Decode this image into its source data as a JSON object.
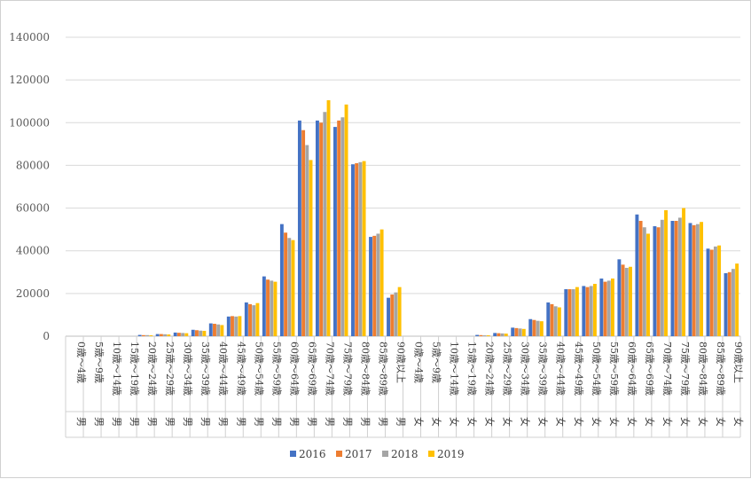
{
  "chart_data": {
    "type": "bar",
    "title": "",
    "xlabel": "",
    "ylabel": "",
    "ylim": [
      0,
      140000
    ],
    "yticks": [
      "0",
      "20000",
      "40000",
      "60000",
      "80000",
      "100000",
      "120000",
      "140000"
    ],
    "grid": true,
    "legend_position": "bottom",
    "categories": [
      {
        "age": "0歳～4歳",
        "sex": "男"
      },
      {
        "age": "5歳～9歳",
        "sex": "男"
      },
      {
        "age": "10歳～14歳",
        "sex": "男"
      },
      {
        "age": "15歳～19歳",
        "sex": "男"
      },
      {
        "age": "20歳～24歳",
        "sex": "男"
      },
      {
        "age": "25歳～29歳",
        "sex": "男"
      },
      {
        "age": "30歳～34歳",
        "sex": "男"
      },
      {
        "age": "35歳～39歳",
        "sex": "男"
      },
      {
        "age": "40歳～44歳",
        "sex": "男"
      },
      {
        "age": "45歳～49歳",
        "sex": "男"
      },
      {
        "age": "50歳～54歳",
        "sex": "男"
      },
      {
        "age": "55歳～59歳",
        "sex": "男"
      },
      {
        "age": "60歳～64歳",
        "sex": "男"
      },
      {
        "age": "65歳～69歳",
        "sex": "男"
      },
      {
        "age": "70歳～74歳",
        "sex": "男"
      },
      {
        "age": "75歳～79歳",
        "sex": "男"
      },
      {
        "age": "80歳～84歳",
        "sex": "男"
      },
      {
        "age": "85歳～89歳",
        "sex": "男"
      },
      {
        "age": "90歳以上",
        "sex": "男"
      },
      {
        "age": "0歳～4歳",
        "sex": "女"
      },
      {
        "age": "5歳～9歳",
        "sex": "女"
      },
      {
        "age": "10歳～14歳",
        "sex": "女"
      },
      {
        "age": "15歳～19歳",
        "sex": "女"
      },
      {
        "age": "20歳～24歳",
        "sex": "女"
      },
      {
        "age": "25歳～29歳",
        "sex": "女"
      },
      {
        "age": "30歳～34歳",
        "sex": "女"
      },
      {
        "age": "35歳～39歳",
        "sex": "女"
      },
      {
        "age": "40歳～44歳",
        "sex": "女"
      },
      {
        "age": "45歳～49歳",
        "sex": "女"
      },
      {
        "age": "50歳～54歳",
        "sex": "女"
      },
      {
        "age": "55歳～59歳",
        "sex": "女"
      },
      {
        "age": "60歳～64歳",
        "sex": "女"
      },
      {
        "age": "65歳～69歳",
        "sex": "女"
      },
      {
        "age": "70歳～74歳",
        "sex": "女"
      },
      {
        "age": "75歳～79歳",
        "sex": "女"
      },
      {
        "age": "80歳～84歳",
        "sex": "女"
      },
      {
        "age": "85歳～89歳",
        "sex": "女"
      },
      {
        "age": "90歳以上",
        "sex": "女"
      }
    ],
    "series": [
      {
        "name": "2016",
        "color": "#4472C4",
        "values": [
          0,
          0,
          0,
          0,
          600,
          1000,
          1700,
          3000,
          6000,
          9200,
          15800,
          28000,
          52500,
          101000,
          101000,
          98000,
          80500,
          46500,
          18000,
          0,
          0,
          0,
          0,
          600,
          1500,
          4000,
          8000,
          15800,
          22000,
          23500,
          27000,
          36000,
          57000,
          51500,
          54000,
          53000,
          41000,
          29500
        ]
      },
      {
        "name": "2017",
        "color": "#ED7D31",
        "values": [
          0,
          0,
          0,
          0,
          500,
          1000,
          1600,
          2800,
          5800,
          9400,
          15000,
          26500,
          48500,
          96500,
          100000,
          101000,
          81000,
          47000,
          19500,
          0,
          0,
          0,
          0,
          500,
          1400,
          3800,
          7600,
          15000,
          22000,
          23000,
          25500,
          33500,
          54000,
          51000,
          54000,
          52000,
          40500,
          30000
        ]
      },
      {
        "name": "2018",
        "color": "#A5A5A5",
        "values": [
          0,
          0,
          0,
          0,
          500,
          900,
          1500,
          2600,
          5500,
          9200,
          14500,
          26000,
          46000,
          89500,
          105000,
          102500,
          81500,
          48000,
          20500,
          0,
          0,
          0,
          0,
          400,
          1300,
          3600,
          7200,
          14000,
          22000,
          23500,
          26000,
          32000,
          51000,
          54500,
          55500,
          52500,
          42000,
          31500
        ]
      },
      {
        "name": "2019",
        "color": "#FFC000",
        "values": [
          0,
          0,
          0,
          0,
          400,
          800,
          1400,
          2500,
          5200,
          9400,
          15500,
          25500,
          45000,
          82500,
          110500,
          108500,
          82000,
          50000,
          23000,
          0,
          0,
          0,
          0,
          400,
          1200,
          3400,
          7000,
          13500,
          23000,
          24500,
          27000,
          32500,
          48000,
          59000,
          60000,
          53500,
          42500,
          34000
        ]
      }
    ]
  }
}
